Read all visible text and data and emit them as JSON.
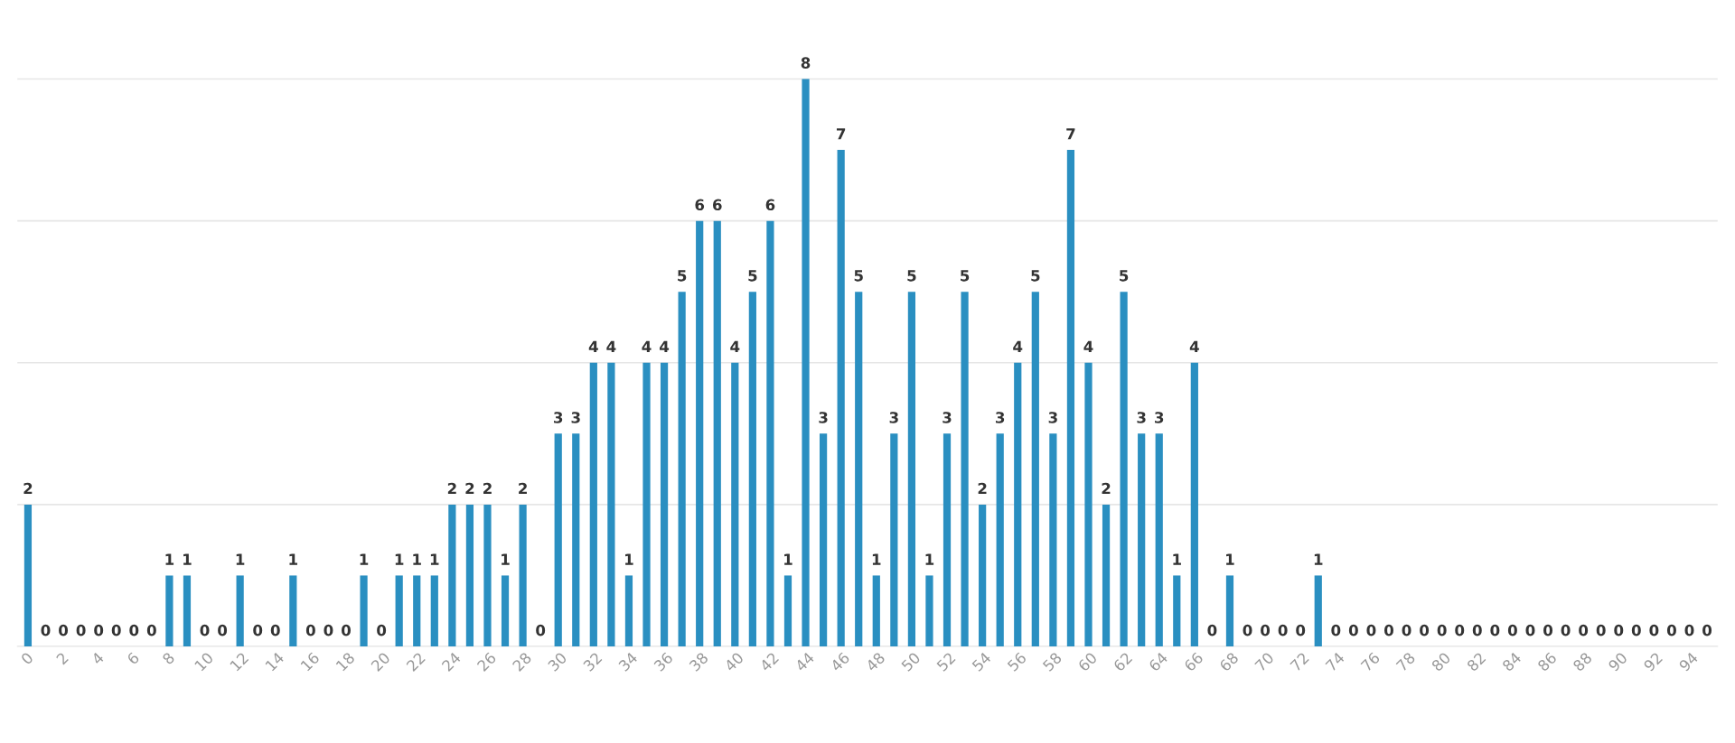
{
  "chart_data": {
    "type": "bar",
    "categories": [
      "0",
      null,
      "2",
      null,
      "4",
      null,
      "6",
      null,
      "8",
      null,
      "10",
      null,
      "12",
      null,
      "14",
      null,
      "16",
      null,
      "18",
      null,
      "20",
      null,
      "22",
      null,
      "24",
      null,
      "26",
      null,
      "28",
      null,
      "30",
      null,
      "32",
      null,
      "34",
      null,
      "36",
      null,
      "38",
      null,
      "40",
      null,
      "42",
      null,
      "44",
      null,
      "46",
      null,
      "48",
      null,
      "50",
      null,
      "52",
      null,
      "54",
      null,
      "56",
      null,
      "58",
      null,
      "60",
      null,
      "62",
      null,
      "64",
      null,
      "66",
      null,
      "68",
      null,
      "70",
      null,
      "72",
      null,
      "74",
      null,
      "76",
      null,
      "78",
      null,
      "80",
      null,
      "82",
      null,
      "84",
      null,
      "86",
      null,
      "88",
      null,
      "90",
      null,
      "92",
      null,
      "94",
      null
    ],
    "values": [
      2,
      0,
      0,
      0,
      0,
      0,
      0,
      0,
      1,
      1,
      0,
      0,
      1,
      0,
      0,
      1,
      0,
      0,
      0,
      1,
      0,
      1,
      1,
      1,
      2,
      2,
      2,
      1,
      2,
      0,
      3,
      3,
      4,
      4,
      1,
      4,
      4,
      5,
      6,
      6,
      4,
      5,
      6,
      1,
      8,
      3,
      7,
      5,
      1,
      3,
      5,
      1,
      3,
      5,
      2,
      3,
      4,
      5,
      3,
      7,
      4,
      2,
      5,
      3,
      3,
      1,
      4,
      0,
      1,
      0,
      0,
      0,
      0,
      1,
      0,
      0,
      0,
      0,
      0,
      0,
      0,
      0,
      0,
      0,
      0,
      0,
      0,
      0,
      0,
      0,
      0,
      0,
      0,
      0,
      0,
      0
    ],
    "color": "#2a8fc1",
    "yticks": [
      {
        "value": 0,
        "label": null
      },
      {
        "value": 2,
        "label": null
      },
      {
        "value": 4,
        "label": null
      },
      {
        "value": 6,
        "label": null
      },
      {
        "value": 8,
        "label": null
      }
    ],
    "grid": "y",
    "tick_labels": "x",
    "data_labels": true
  }
}
